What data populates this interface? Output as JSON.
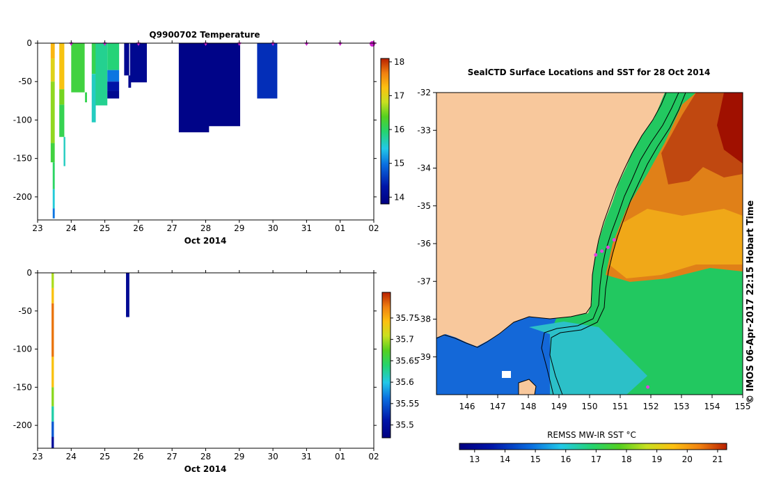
{
  "chart_data": [
    {
      "type": "heatmap",
      "title": "Q9900702  Temperature",
      "xlabel": "Oct 2014",
      "xtick_labels": [
        "23",
        "24",
        "25",
        "26",
        "27",
        "28",
        "29",
        "30",
        "31",
        "01",
        "02"
      ],
      "ytick_values": [
        0,
        -50,
        -100,
        -150,
        -200
      ],
      "ylim": [
        -230,
        0
      ],
      "colorbar": {
        "range": [
          13.8,
          18.1
        ],
        "ticks": [
          14,
          15,
          16,
          17,
          18
        ]
      },
      "profiles": [
        {
          "day": 23.45,
          "width": 0.12,
          "depth": 155,
          "segments": [
            [
              0,
              20,
              17.3
            ],
            [
              20,
              50,
              17.0
            ],
            [
              50,
              130,
              16.6
            ],
            [
              130,
              155,
              16.2
            ]
          ]
        },
        {
          "day": 23.48,
          "width": 0.06,
          "depth": 228,
          "segments": [
            [
              155,
              190,
              16.0
            ],
            [
              190,
              215,
              15.5
            ],
            [
              215,
              228,
              15.0
            ]
          ]
        },
        {
          "day": 23.72,
          "width": 0.15,
          "depth": 122,
          "segments": [
            [
              0,
              60,
              17.2
            ],
            [
              60,
              80,
              16.5
            ],
            [
              80,
              122,
              16.1
            ]
          ]
        },
        {
          "day": 23.8,
          "width": 0.05,
          "depth": 160,
          "segments": [
            [
              122,
              160,
              15.6
            ]
          ]
        },
        {
          "day": 24.2,
          "width": 0.4,
          "depth": 64,
          "segments": [
            [
              0,
              64,
              16.2
            ]
          ]
        },
        {
          "day": 24.44,
          "width": 0.06,
          "depth": 77,
          "segments": [
            [
              64,
              77,
              16.1
            ]
          ]
        },
        {
          "day": 24.67,
          "width": 0.12,
          "depth": 103,
          "segments": [
            [
              0,
              40,
              16.1
            ],
            [
              40,
              103,
              15.6
            ]
          ]
        },
        {
          "day": 24.9,
          "width": 0.35,
          "depth": 81,
          "segments": [
            [
              0,
              81,
              15.8
            ]
          ]
        },
        {
          "day": 25.25,
          "width": 0.35,
          "depth": 72,
          "segments": [
            [
              0,
              35,
              15.9
            ],
            [
              35,
              50,
              15.0
            ],
            [
              50,
              62,
              14.3
            ],
            [
              62,
              72,
              14.0
            ]
          ]
        },
        {
          "day": 25.65,
          "width": 0.15,
          "depth": 42,
          "segments": [
            [
              0,
              42,
              14.0
            ]
          ]
        },
        {
          "day": 25.74,
          "width": 0.08,
          "depth": 58,
          "segments": [
            [
              42,
              58,
              14.0
            ]
          ]
        },
        {
          "day": 26.0,
          "width": 0.5,
          "depth": 51,
          "segments": [
            [
              0,
              51,
              14.0
            ]
          ]
        },
        {
          "day": 27.65,
          "width": 0.9,
          "depth": 116,
          "segments": [
            [
              0,
              116,
              13.9
            ]
          ]
        },
        {
          "day": 28.55,
          "width": 0.95,
          "depth": 108,
          "segments": [
            [
              0,
              108,
              13.9
            ]
          ]
        },
        {
          "day": 29.83,
          "width": 0.6,
          "depth": 72,
          "segments": [
            [
              0,
              72,
              14.5
            ]
          ]
        }
      ],
      "surface_markers": [
        24,
        25,
        26,
        28,
        29,
        30,
        31,
        32,
        33
      ]
    },
    {
      "type": "heatmap",
      "title": "",
      "xlabel": "Oct 2014",
      "xtick_labels": [
        "23",
        "24",
        "25",
        "26",
        "27",
        "28",
        "29",
        "30",
        "31",
        "01",
        "02"
      ],
      "ytick_values": [
        0,
        -50,
        -100,
        -150,
        -200
      ],
      "ylim": [
        -230,
        0
      ],
      "colorbar": {
        "range": [
          35.47,
          35.81
        ],
        "ticks": [
          35.5,
          35.55,
          35.6,
          35.65,
          35.7,
          35.75
        ]
      },
      "profiles": [
        {
          "day": 23.45,
          "width": 0.07,
          "depth": 230,
          "segments": [
            [
              0,
              20,
              35.7
            ],
            [
              20,
              40,
              35.74
            ],
            [
              40,
              110,
              35.78
            ],
            [
              110,
              150,
              35.74
            ],
            [
              150,
              175,
              35.69
            ],
            [
              175,
              195,
              35.62
            ],
            [
              195,
              215,
              35.55
            ],
            [
              215,
              230,
              35.5
            ]
          ]
        },
        {
          "day": 25.68,
          "width": 0.1,
          "depth": 58,
          "segments": [
            [
              0,
              58,
              35.49
            ]
          ]
        }
      ]
    },
    {
      "type": "heatmap",
      "title": "SealCTD Surface Locations and SST for 28 Oct 2014",
      "x_ticks": [
        146,
        147,
        148,
        149,
        150,
        151,
        152,
        153,
        154,
        155
      ],
      "y_ticks": [
        -32,
        -33,
        -34,
        -35,
        -36,
        -37,
        -38,
        -39
      ],
      "xlim": [
        145,
        155
      ],
      "ylim": [
        -40,
        -32
      ],
      "colorbar_label": "REMSS MW-IR SST °C",
      "colorbar_ticks": [
        13,
        14,
        15,
        16,
        17,
        18,
        19,
        20,
        21
      ],
      "colorbar_range": [
        12.5,
        21.3
      ],
      "land_color": "#f8c89c",
      "profile_locations": [
        [
          150.2,
          -36.3
        ],
        [
          150.4,
          -36.2
        ],
        [
          150.6,
          -36.1
        ],
        [
          150.8,
          -35.9
        ],
        [
          151.9,
          -39.8
        ]
      ],
      "credit": "© IMOS 06-Apr-2017 22:15 Hobart Time"
    }
  ]
}
